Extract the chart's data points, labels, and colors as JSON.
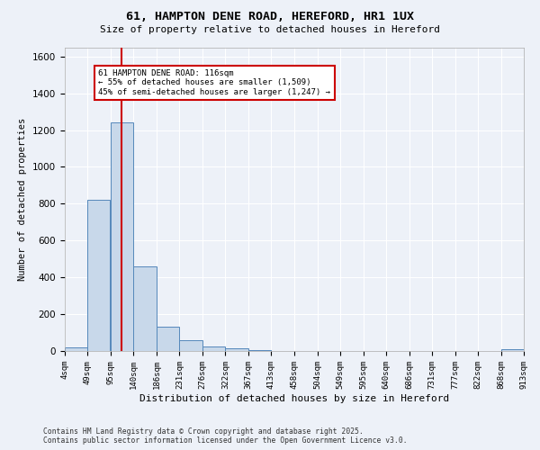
{
  "title": "61, HAMPTON DENE ROAD, HEREFORD, HR1 1UX",
  "subtitle": "Size of property relative to detached houses in Hereford",
  "xlabel": "Distribution of detached houses by size in Hereford",
  "ylabel": "Number of detached properties",
  "bin_edges": [
    4,
    49,
    95,
    140,
    186,
    231,
    276,
    322,
    367,
    413,
    458,
    504,
    549,
    595,
    640,
    686,
    731,
    777,
    822,
    868,
    913
  ],
  "bar_heights": [
    20,
    820,
    1240,
    460,
    130,
    60,
    25,
    15,
    5,
    2,
    2,
    2,
    2,
    2,
    2,
    2,
    2,
    2,
    2,
    12
  ],
  "bar_color": "#c8d8ea",
  "bar_edge_color": "#5588bb",
  "red_line_x": 116,
  "ylim": [
    0,
    1650
  ],
  "annotation_text": "61 HAMPTON DENE ROAD: 116sqm\n← 55% of detached houses are smaller (1,509)\n45% of semi-detached houses are larger (1,247) →",
  "annotation_box_color": "#ffffff",
  "annotation_box_edge": "#cc0000",
  "red_line_color": "#cc0000",
  "background_color": "#edf1f8",
  "grid_color": "#ffffff",
  "footer_line1": "Contains HM Land Registry data © Crown copyright and database right 2025.",
  "footer_line2": "Contains public sector information licensed under the Open Government Licence v3.0."
}
